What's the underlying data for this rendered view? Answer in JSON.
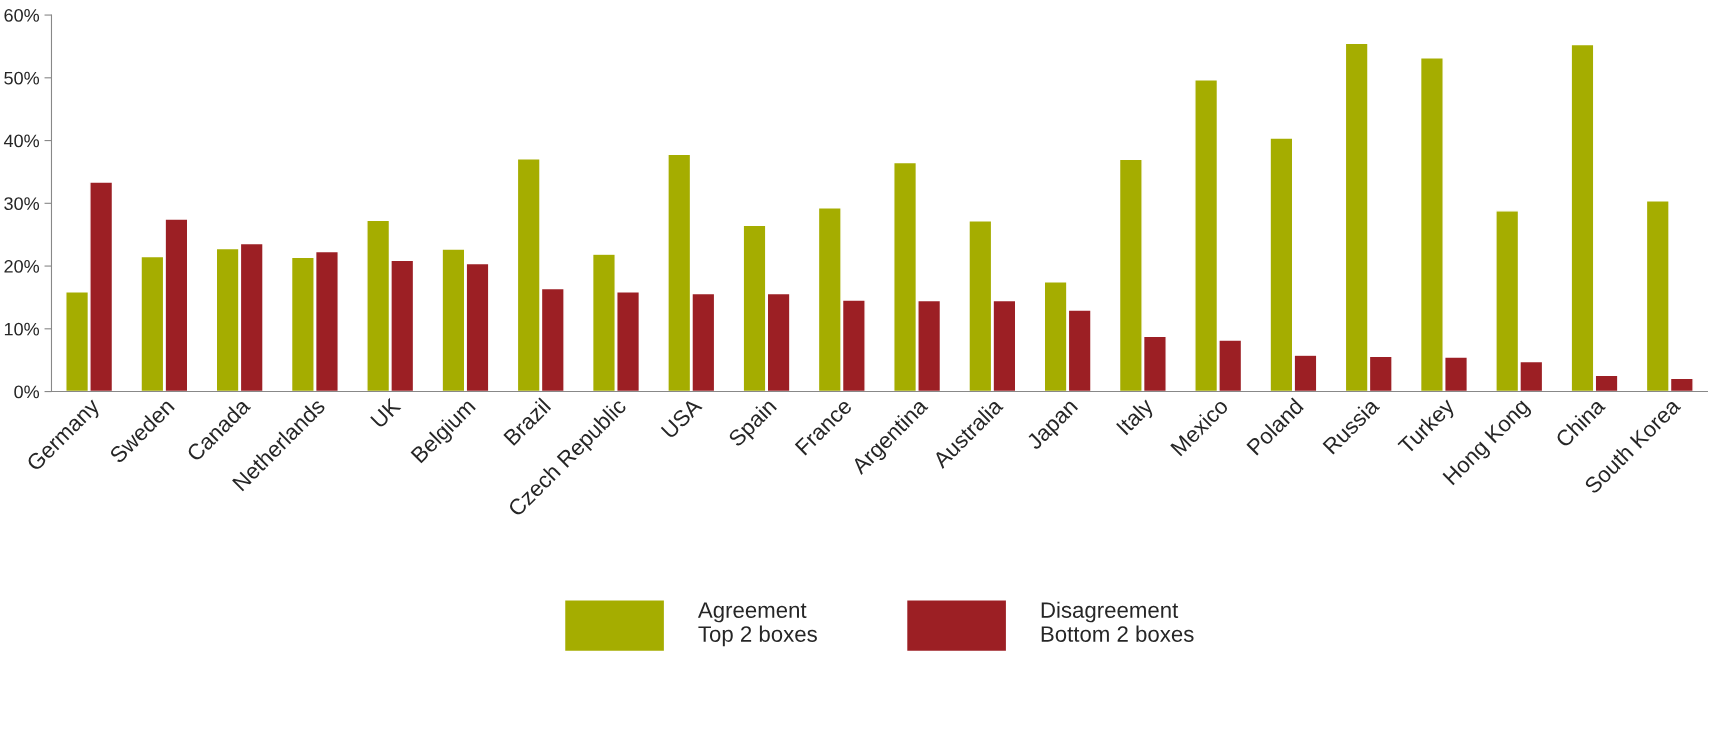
{
  "chart_data": {
    "type": "bar",
    "categories": [
      "Germany",
      "Sweden",
      "Canada",
      "Netherlands",
      "UK",
      "Belgium",
      "Brazil",
      "Czech Republic",
      "USA",
      "Spain",
      "France",
      "Argentina",
      "Australia",
      "Japan",
      "Italy",
      "Mexico",
      "Poland",
      "Russia",
      "Turkey",
      "Hong Kong",
      "China",
      "South Korea"
    ],
    "series": [
      {
        "name": "Agreement\nTop 2 boxes",
        "color": "#a5ad00",
        "values": [
          15.9,
          21.5,
          22.8,
          21.4,
          27.3,
          22.7,
          37.1,
          21.9,
          37.8,
          26.5,
          29.3,
          36.5,
          27.2,
          17.5,
          37.0,
          49.7,
          40.4,
          55.5,
          53.2,
          28.8,
          55.3,
          30.4
        ]
      },
      {
        "name": "Disagreement\nBottom 2 boxes",
        "color": "#9c1f24",
        "values": [
          33.4,
          27.5,
          23.6,
          22.3,
          20.9,
          20.4,
          16.4,
          15.9,
          15.6,
          15.6,
          14.6,
          14.5,
          14.5,
          13.0,
          8.8,
          8.2,
          5.8,
          5.6,
          5.5,
          4.8,
          2.6,
          2.1
        ]
      }
    ],
    "ylim": [
      0,
      60
    ],
    "yticks": [
      {
        "value": 0,
        "label": "0%"
      },
      {
        "value": 10,
        "label": "10%"
      },
      {
        "value": 20,
        "label": "20%"
      },
      {
        "value": 30,
        "label": "30%"
      },
      {
        "value": 40,
        "label": "40%"
      },
      {
        "value": 50,
        "label": "50%"
      },
      {
        "value": 60,
        "label": "60%"
      }
    ],
    "grid": false,
    "legend": "bottom"
  }
}
